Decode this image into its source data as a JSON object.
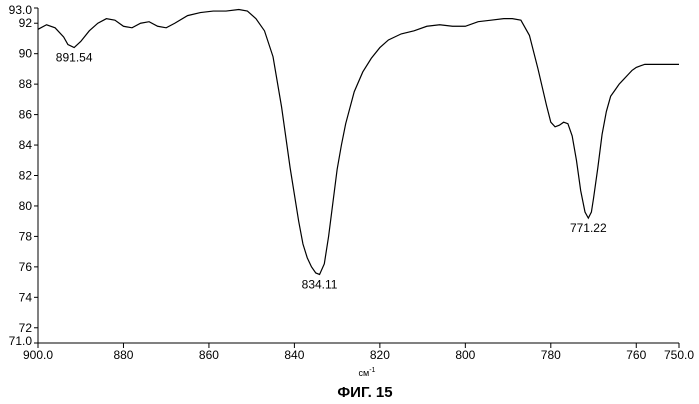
{
  "chart_data": {
    "type": "line",
    "title": "",
    "xlabel": "",
    "xlabel_unit": "см",
    "xlabel_unit_exp": "-1",
    "ylabel": "",
    "xlim": [
      900.0,
      750.0
    ],
    "ylim": [
      71.0,
      93.0
    ],
    "x_ticks": [
      {
        "value": 900,
        "label": "900.0"
      },
      {
        "value": 880,
        "label": "880"
      },
      {
        "value": 860,
        "label": "860"
      },
      {
        "value": 840,
        "label": "840"
      },
      {
        "value": 820,
        "label": "820"
      },
      {
        "value": 800,
        "label": "800"
      },
      {
        "value": 780,
        "label": "780"
      },
      {
        "value": 760,
        "label": "760"
      },
      {
        "value": 750,
        "label": "750.0"
      }
    ],
    "y_ticks": [
      {
        "value": 93,
        "label": "93.0"
      },
      {
        "value": 92,
        "label": "92"
      },
      {
        "value": 90,
        "label": "90"
      },
      {
        "value": 88,
        "label": "88"
      },
      {
        "value": 86,
        "label": "86"
      },
      {
        "value": 84,
        "label": "84"
      },
      {
        "value": 82,
        "label": "82"
      },
      {
        "value": 80,
        "label": "80"
      },
      {
        "value": 78,
        "label": "78"
      },
      {
        "value": 76,
        "label": "76"
      },
      {
        "value": 74,
        "label": "74"
      },
      {
        "value": 72,
        "label": "72"
      },
      {
        "value": 71,
        "label": "71.0"
      }
    ],
    "series": [
      {
        "x": [
          900,
          898,
          896,
          894,
          893,
          891.54,
          890,
          888,
          886,
          884,
          882,
          880,
          878,
          876,
          874,
          872,
          870,
          868,
          865,
          862,
          859,
          856,
          853,
          851,
          849,
          847,
          845,
          843,
          841,
          839,
          838,
          837,
          836,
          835,
          834.11,
          833,
          832,
          831,
          830,
          829,
          828,
          826,
          824,
          822,
          820,
          818,
          815,
          812,
          809,
          806,
          803,
          800,
          797,
          794,
          791,
          789,
          787,
          785,
          783,
          781,
          780,
          779,
          778,
          777,
          776,
          775,
          774,
          773,
          772,
          771.22,
          770.5,
          770,
          769,
          768,
          767,
          766,
          765,
          764,
          763,
          762,
          761,
          760,
          759,
          758,
          757,
          756,
          754,
          752,
          750
        ],
        "y": [
          91.6,
          91.9,
          91.7,
          91.1,
          90.6,
          90.4,
          90.8,
          91.5,
          92.0,
          92.3,
          92.2,
          91.8,
          91.7,
          92.0,
          92.1,
          91.8,
          91.7,
          92.0,
          92.5,
          92.7,
          92.8,
          92.8,
          92.9,
          92.8,
          92.3,
          91.5,
          89.8,
          86.5,
          82.5,
          79.0,
          77.5,
          76.6,
          76.0,
          75.6,
          75.5,
          76.2,
          78.0,
          80.2,
          82.4,
          84.0,
          85.4,
          87.5,
          88.8,
          89.7,
          90.4,
          90.9,
          91.3,
          91.5,
          91.8,
          91.9,
          91.8,
          91.8,
          92.1,
          92.2,
          92.3,
          92.3,
          92.2,
          91.2,
          89.0,
          86.6,
          85.5,
          85.2,
          85.3,
          85.5,
          85.4,
          84.6,
          83.0,
          81.0,
          79.6,
          79.2,
          79.6,
          80.5,
          82.5,
          84.7,
          86.2,
          87.2,
          87.6,
          88.0,
          88.3,
          88.6,
          88.9,
          89.1,
          89.2,
          89.3,
          89.3,
          89.3,
          89.3,
          89.3,
          89.3
        ]
      }
    ],
    "annotations": [
      {
        "x": 891.54,
        "y": 90.4,
        "label": "891.54"
      },
      {
        "x": 834.11,
        "y": 75.5,
        "label": "834.11"
      },
      {
        "x": 771.22,
        "y": 79.2,
        "label": "771.22"
      }
    ],
    "grid": false,
    "line_color": "#000000"
  },
  "caption": "ФИГ. 15"
}
